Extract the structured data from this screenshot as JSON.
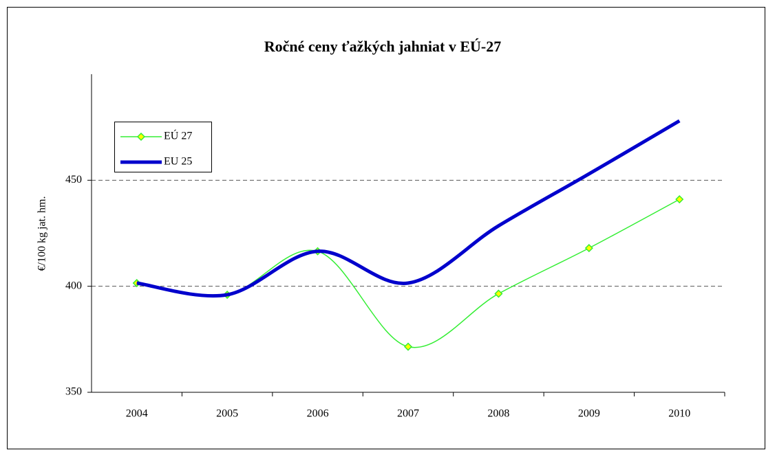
{
  "chart_data": {
    "type": "line",
    "title": "Ročné ceny ťažkých jahniat v EÚ-27",
    "y_label": "€/100 kg jat. hm.",
    "categories": [
      "2004",
      "2005",
      "2006",
      "2007",
      "2008",
      "2009",
      "2010"
    ],
    "series": [
      {
        "name": "EÚ 27",
        "color": "#33ee33",
        "marker_color": "#ffff00",
        "values": [
          401.5,
          396,
          416.5,
          371.5,
          396.5,
          418,
          441
        ]
      },
      {
        "name": "EU 25",
        "color": "#0000cc",
        "values": [
          401.5,
          396,
          416.5,
          401.5,
          428.5,
          453,
          478
        ]
      }
    ],
    "ylim": [
      350,
      500
    ],
    "yticks": [
      350,
      400,
      450
    ],
    "grid": true,
    "legend": "upper left"
  }
}
